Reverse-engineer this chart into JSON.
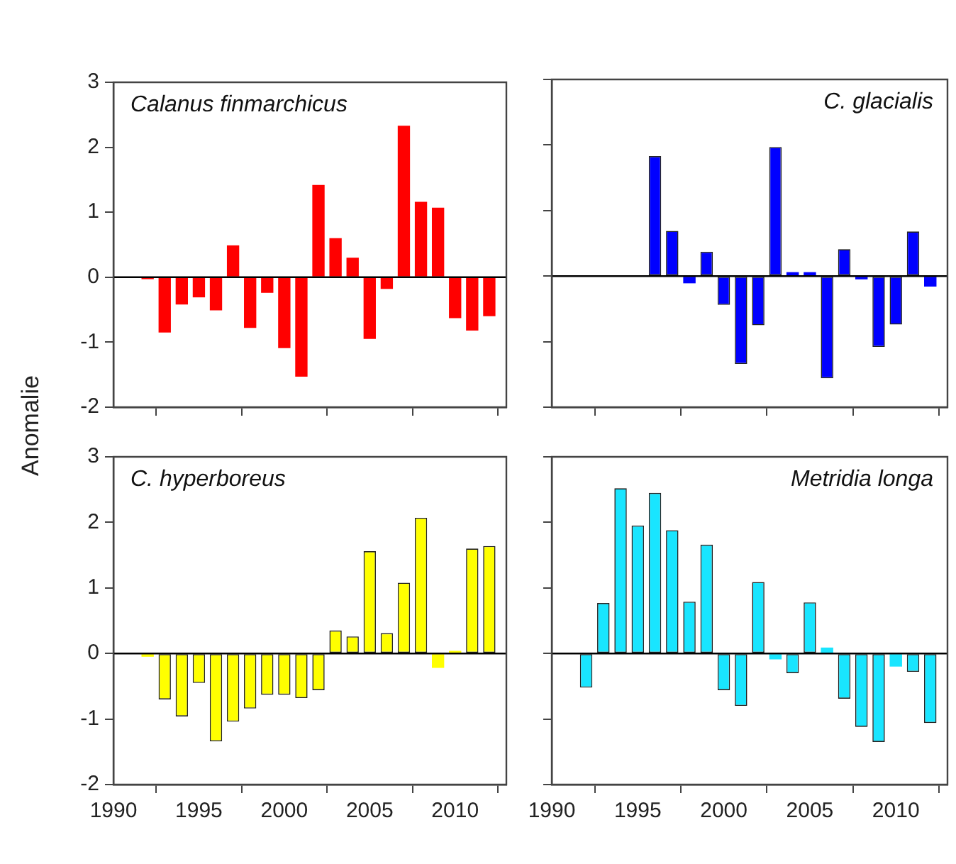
{
  "chart_data": [
    {
      "type": "bar",
      "title": "Calanus finmarchicus",
      "ylabel": "Anomalie",
      "x": [
        1992,
        1993,
        1994,
        1995,
        1996,
        1997,
        1998,
        1999,
        2000,
        2001,
        2002,
        2003,
        2004,
        2005,
        2006,
        2007,
        2008,
        2009,
        2010,
        2011,
        2012
      ],
      "series": [
        {
          "color": "#ff0000",
          "values": [
            -0.03,
            -0.85,
            -0.42,
            -0.31,
            -0.51,
            0.49,
            -0.78,
            -0.24,
            -1.09,
            -1.53,
            1.42,
            0.6,
            0.3,
            -0.95,
            -0.18,
            2.33,
            1.16,
            1.07,
            -0.63,
            -0.82,
            -0.6
          ]
        }
      ],
      "xlim": [
        1990,
        2013
      ],
      "xticks": [
        {
          "value": 1990,
          "label": null
        },
        {
          "value": 1995,
          "label": null
        },
        {
          "value": 2000,
          "label": null
        },
        {
          "value": 2005,
          "label": null
        },
        {
          "value": 2010,
          "label": null
        }
      ],
      "ylim": [
        -2,
        3
      ],
      "yticks": [
        -2,
        -1,
        0,
        1,
        2,
        3
      ],
      "tick_labels": "y",
      "ref_lines": [
        {
          "axis": "y",
          "value": 0,
          "color": "#000000"
        }
      ]
    },
    {
      "type": "bar",
      "title": "C. glacialis",
      "x": [
        1996,
        1997,
        1998,
        1999,
        2000,
        2001,
        2002,
        2003,
        2004,
        2005,
        2006,
        2007,
        2008,
        2009,
        2010,
        2011,
        2012
      ],
      "series": [
        {
          "color": "#0000ff",
          "values": [
            1.83,
            0.69,
            -0.11,
            0.37,
            -0.44,
            -1.34,
            -0.75,
            1.97,
            0.06,
            0.06,
            -1.56,
            0.41,
            -0.05,
            -1.08,
            -0.74,
            0.68,
            -0.16
          ]
        }
      ],
      "xlim": [
        1990,
        2013
      ],
      "xticks": [
        {
          "value": 1990,
          "label": null
        },
        {
          "value": 1995,
          "label": null
        },
        {
          "value": 2000,
          "label": null
        },
        {
          "value": 2005,
          "label": null
        },
        {
          "value": 2010,
          "label": null
        }
      ],
      "ylim": [
        -2,
        3
      ],
      "yticks": [
        {
          "value": -2,
          "label": null
        },
        {
          "value": -1,
          "label": null
        },
        {
          "value": 0,
          "label": null
        },
        {
          "value": 1,
          "label": null
        },
        {
          "value": 2,
          "label": null
        },
        {
          "value": 3,
          "label": null
        }
      ],
      "tick_labels": false,
      "ref_lines": [
        {
          "axis": "y",
          "value": 0,
          "color": "#000000"
        }
      ]
    },
    {
      "type": "bar",
      "title": "C. hyperboreus",
      "x": [
        1992,
        1993,
        1994,
        1995,
        1996,
        1997,
        1998,
        1999,
        2000,
        2001,
        2002,
        2003,
        2004,
        2005,
        2006,
        2007,
        2008,
        2009,
        2010,
        2011,
        2012
      ],
      "series": [
        {
          "color": "#ffff00",
          "values": [
            -0.05,
            -0.7,
            -0.96,
            -0.45,
            -1.34,
            -1.04,
            -0.84,
            -0.63,
            -0.63,
            -0.68,
            -0.56,
            0.35,
            0.26,
            1.56,
            0.31,
            1.08,
            2.07,
            -0.22,
            0.04,
            1.6,
            1.64
          ]
        }
      ],
      "xlim": [
        1990,
        2013
      ],
      "xticks": [
        1990,
        1995,
        2000,
        2005,
        2010
      ],
      "ylim": [
        -2,
        3
      ],
      "yticks": [
        -2,
        -1,
        0,
        1,
        2,
        3
      ],
      "ref_lines": [
        {
          "axis": "y",
          "value": 0,
          "color": "#000000"
        }
      ]
    },
    {
      "type": "bar",
      "title": "Metridia longa",
      "x": [
        1992,
        1993,
        1994,
        1995,
        1996,
        1997,
        1998,
        1999,
        2000,
        2001,
        2002,
        2003,
        2004,
        2005,
        2006,
        2007,
        2008,
        2009,
        2010,
        2011,
        2012
      ],
      "series": [
        {
          "color": "#19e5ff",
          "values": [
            -0.52,
            0.77,
            2.52,
            1.95,
            2.45,
            1.88,
            0.79,
            1.66,
            -0.56,
            -0.8,
            1.09,
            -0.09,
            -0.3,
            0.78,
            0.09,
            -0.69,
            -1.12,
            -1.35,
            -0.2,
            -0.28,
            -1.06
          ]
        }
      ],
      "xlim": [
        1990,
        2013
      ],
      "xticks": [
        1990,
        1995,
        2000,
        2005,
        2010
      ],
      "ylim": [
        -2,
        3
      ],
      "yticks": [
        {
          "value": -2,
          "label": null
        },
        {
          "value": -1,
          "label": null
        },
        {
          "value": 0,
          "label": null
        },
        {
          "value": 1,
          "label": null
        },
        {
          "value": 2,
          "label": null
        },
        {
          "value": 3,
          "label": null
        }
      ],
      "tick_labels": "x",
      "ref_lines": [
        {
          "axis": "y",
          "value": 0,
          "color": "#000000"
        }
      ]
    }
  ]
}
